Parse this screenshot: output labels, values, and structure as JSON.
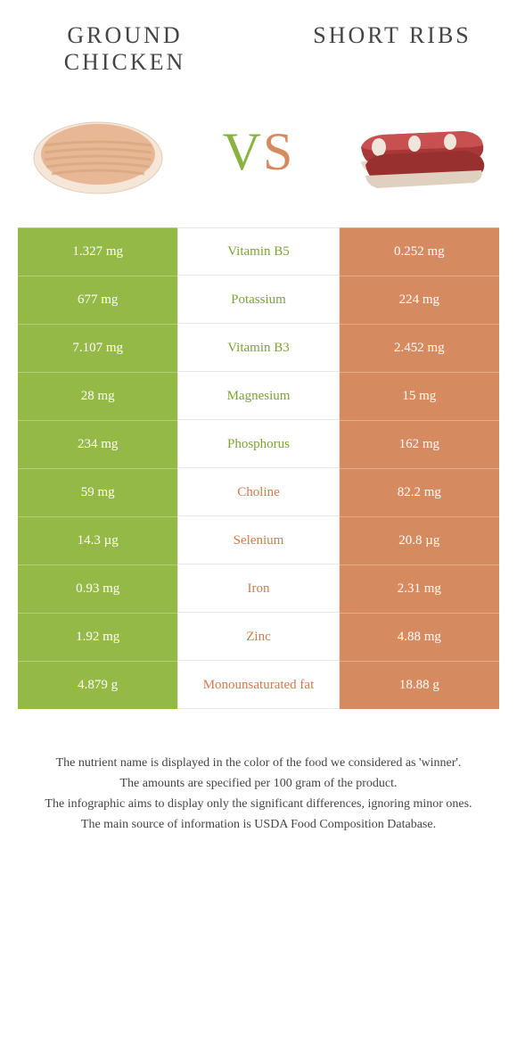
{
  "header": {
    "left_title": "GROUND CHICKEN",
    "right_title": "SHORT RIBS",
    "vs_v": "V",
    "vs_s": "S"
  },
  "colors": {
    "left_bg": "#95b946",
    "right_bg": "#d68a5f",
    "left_text": "#7ca233",
    "right_text": "#d27a4a",
    "white": "#ffffff",
    "border": "#e8e8e8",
    "chicken_fill": "#e8b896",
    "chicken_tray": "#f5e6d8",
    "rib_meat": "#a83838",
    "rib_fat": "#e8d8c8",
    "rib_marble": "#f0e5da"
  },
  "rows": [
    {
      "left": "1.327 mg",
      "label": "Vitamin B5",
      "right": "0.252 mg",
      "winner": "left"
    },
    {
      "left": "677 mg",
      "label": "Potassium",
      "right": "224 mg",
      "winner": "left"
    },
    {
      "left": "7.107 mg",
      "label": "Vitamin B3",
      "right": "2.452 mg",
      "winner": "left"
    },
    {
      "left": "28 mg",
      "label": "Magnesium",
      "right": "15 mg",
      "winner": "left"
    },
    {
      "left": "234 mg",
      "label": "Phosphorus",
      "right": "162 mg",
      "winner": "left"
    },
    {
      "left": "59 mg",
      "label": "Choline",
      "right": "82.2 mg",
      "winner": "right"
    },
    {
      "left": "14.3 µg",
      "label": "Selenium",
      "right": "20.8 µg",
      "winner": "right"
    },
    {
      "left": "0.93 mg",
      "label": "Iron",
      "right": "2.31 mg",
      "winner": "right"
    },
    {
      "left": "1.92 mg",
      "label": "Zinc",
      "right": "4.88 mg",
      "winner": "right"
    },
    {
      "left": "4.879 g",
      "label": "Monounsaturated fat",
      "right": "18.88 g",
      "winner": "right"
    }
  ],
  "footnotes": [
    "The nutrient name is displayed in the color of the food we considered as 'winner'.",
    "The amounts are specified per 100 gram of the product.",
    "The infographic aims to display only the significant differences, ignoring minor ones.",
    "The main source of information is USDA Food Composition Database."
  ]
}
